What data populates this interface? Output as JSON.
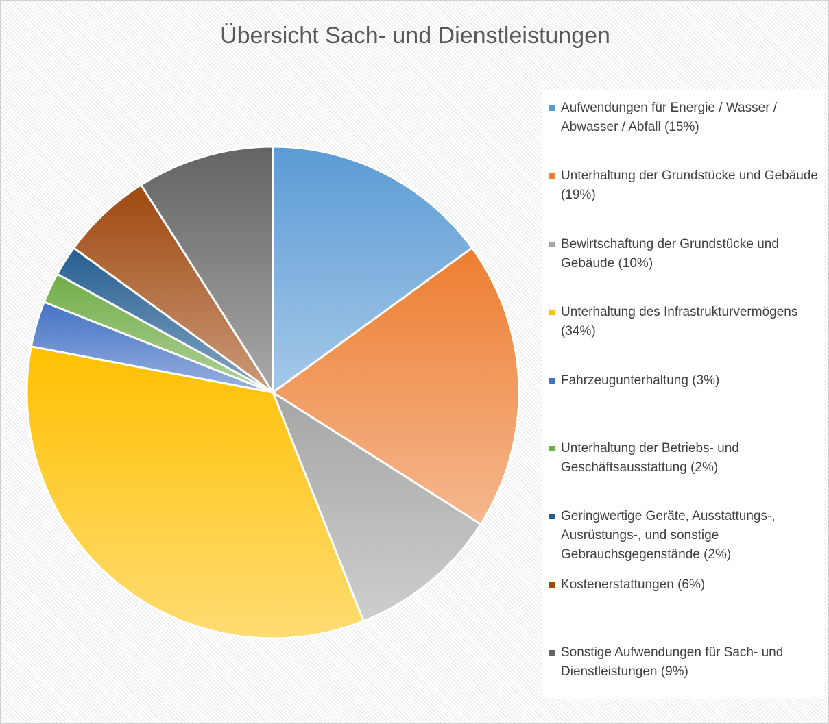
{
  "chart_data": {
    "type": "pie",
    "title": "Übersicht Sach- und Dienstleistungen",
    "categories": [
      "Aufwendungen für Energie / Wasser / Abwasser / Abfall (15%)",
      "Unterhaltung der Grundstücke und Gebäude (19%)",
      "Bewirtschaftung der Grundstücke und Gebäude (10%)",
      "Unterhaltung des Infrastrukturvermögens (34%)",
      "Fahrzeugunterhaltung (3%)",
      "Unterhaltung der Betriebs- und Geschäftsausstattung (2%)",
      "Geringwertige Geräte, Ausstattungs-, Ausrüstungs-, und sonstige Gebrauchsgegenstände (2%)",
      "Kostenerstattungen (6%)",
      "Sonstige Aufwendungen für Sach- und Dienstleistungen (9%)"
    ],
    "values": [
      15,
      19,
      10,
      34,
      3,
      2,
      2,
      6,
      9
    ],
    "colors": [
      "#5b9bd5",
      "#ed7d31",
      "#a5a5a5",
      "#ffc000",
      "#4472c4",
      "#70ad47",
      "#255e91",
      "#9e480e",
      "#636363"
    ],
    "legend": "right"
  }
}
